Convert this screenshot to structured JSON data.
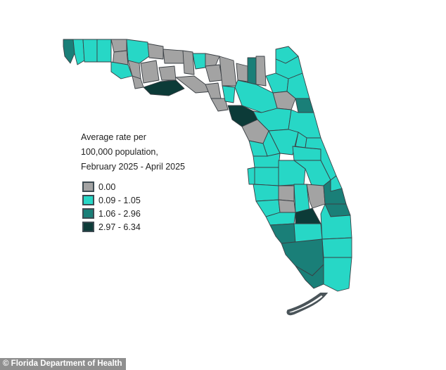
{
  "legend": {
    "title_lines": [
      "Average rate per",
      "100,000 population,",
      "February 2025 - April 2025"
    ],
    "bins": [
      {
        "label": "0.00",
        "color": "#a3a3a3"
      },
      {
        "label": "0.09 - 1.05",
        "color": "#27d7c6"
      },
      {
        "label": "1.06 - 2.96",
        "color": "#1a7f78"
      },
      {
        "label": "2.97 - 6.34",
        "color": "#0c3b38"
      }
    ]
  },
  "credit": "© Florida Department of Health",
  "colors": {
    "outline": "#4a5459",
    "background": "#ffffff"
  }
}
